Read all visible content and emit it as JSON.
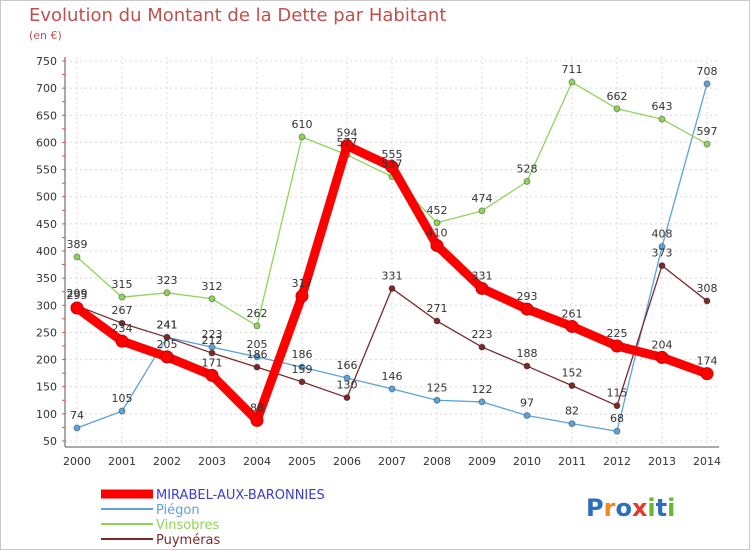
{
  "header": {
    "title": "Evolution du Montant de la Dette par Habitant",
    "subtitle": "(en €)"
  },
  "logo": {
    "text": "Proxiti"
  },
  "chart_data": {
    "type": "line",
    "title": "Evolution du Montant de la Dette par Habitant",
    "subtitle": "(en €)",
    "xlabel": "",
    "ylabel": "",
    "ylim": [
      50,
      750
    ],
    "yticks": [
      50,
      100,
      150,
      200,
      250,
      300,
      350,
      400,
      450,
      500,
      550,
      600,
      650,
      700,
      750
    ],
    "grid": true,
    "legend_position": "bottom-left",
    "categories": [
      "2000",
      "2001",
      "2002",
      "2003",
      "2004",
      "2005",
      "2006",
      "2007",
      "2008",
      "2009",
      "2010",
      "2011",
      "2012",
      "2013",
      "2014"
    ],
    "series": [
      {
        "name": "Piégon",
        "color": "#5ba3d9",
        "values": [
          74,
          105,
          241,
          223,
          205,
          186,
          166,
          146,
          125,
          122,
          97,
          82,
          68,
          408,
          708
        ]
      },
      {
        "name": "Vinsobres",
        "color": "#8fd45a",
        "values": [
          389,
          315,
          323,
          312,
          262,
          610,
          577,
          537,
          452,
          474,
          528,
          711,
          662,
          643,
          597
        ]
      },
      {
        "name": "Puyméras",
        "color": "#7b2a2a",
        "values": [
          299,
          267,
          241,
          212,
          186,
          159,
          130,
          331,
          271,
          223,
          188,
          152,
          115,
          373,
          308
        ]
      },
      {
        "name": "MIRABEL-AUX-BARONNIES",
        "color": "#ff0000",
        "values": [
          295,
          234,
          205,
          171,
          88,
          317,
          594,
          555,
          410,
          331,
          293,
          261,
          225,
          204,
          174
        ]
      }
    ]
  }
}
